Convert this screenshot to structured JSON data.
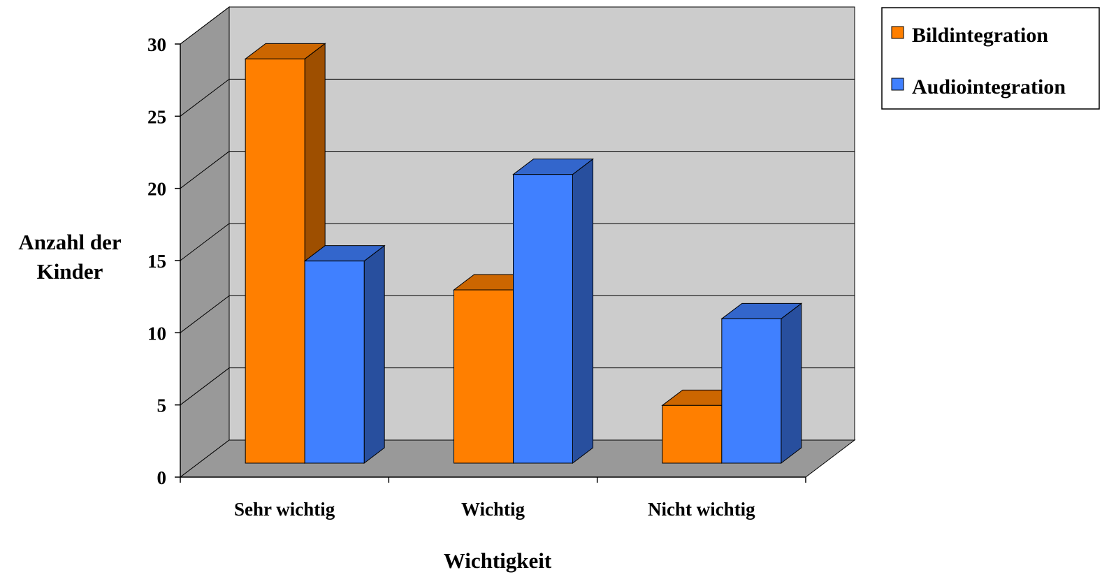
{
  "chart_data": {
    "type": "bar",
    "categories": [
      "Sehr wichtig",
      "Wichtig",
      "Nicht wichtig"
    ],
    "series": [
      {
        "name": "Bildintegration",
        "values": [
          28,
          12,
          4
        ],
        "color": "#FF7F00"
      },
      {
        "name": "Audiointegration",
        "values": [
          14,
          20,
          10
        ],
        "color": "#4080FF"
      }
    ],
    "xlabel": "Wichtigkeit",
    "ylabel": "Anzahl der Kinder",
    "ylabel_lines": [
      "Anzahl der",
      "Kinder"
    ],
    "yticks": [
      0,
      5,
      10,
      15,
      20,
      25,
      30
    ],
    "ylim": [
      0,
      30
    ],
    "grid": true,
    "three_d": true,
    "legend_position": "top-right",
    "wall_color": "#CCCCCC",
    "side_wall_color": "#999999",
    "floor_color": "#999999"
  }
}
